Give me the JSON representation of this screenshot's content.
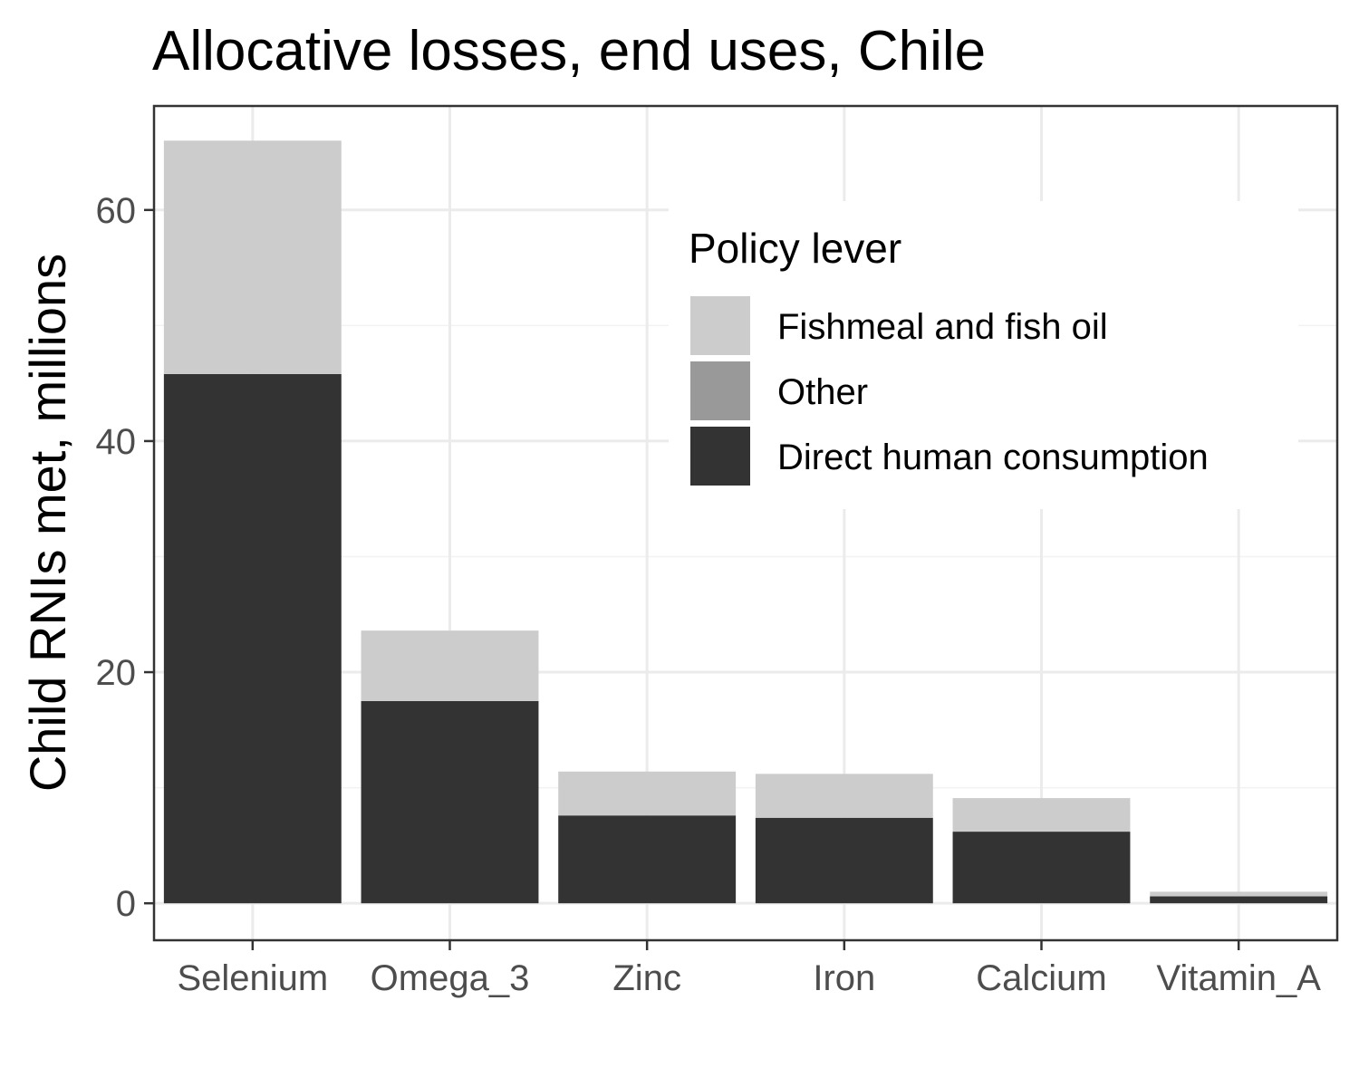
{
  "chart_data": {
    "type": "bar",
    "stacked": true,
    "title": "Allocative losses, end uses, Chile",
    "xlabel": "",
    "ylabel": "Child RNIs met, millions",
    "categories": [
      "Selenium",
      "Omega_3",
      "Zinc",
      "Iron",
      "Calcium",
      "Vitamin_A"
    ],
    "ylim": [
      -3.2,
      69
    ],
    "yticks": [
      0,
      20,
      40,
      60
    ],
    "grid": true,
    "legend": {
      "title": "Policy lever",
      "position": "top-right inside"
    },
    "series": [
      {
        "name": "Direct human consumption",
        "color": "#333333",
        "values": [
          45.8,
          17.5,
          7.6,
          7.4,
          6.2,
          0.6
        ]
      },
      {
        "name": "Other",
        "color": "#999999",
        "values": [
          0,
          0,
          0,
          0,
          0,
          0
        ]
      },
      {
        "name": "Fishmeal and fish oil",
        "color": "#cccccc",
        "values": [
          20.2,
          6.1,
          3.8,
          3.8,
          2.9,
          0.4
        ]
      }
    ],
    "legend_order": [
      "Fishmeal and fish oil",
      "Other",
      "Direct human consumption"
    ]
  }
}
